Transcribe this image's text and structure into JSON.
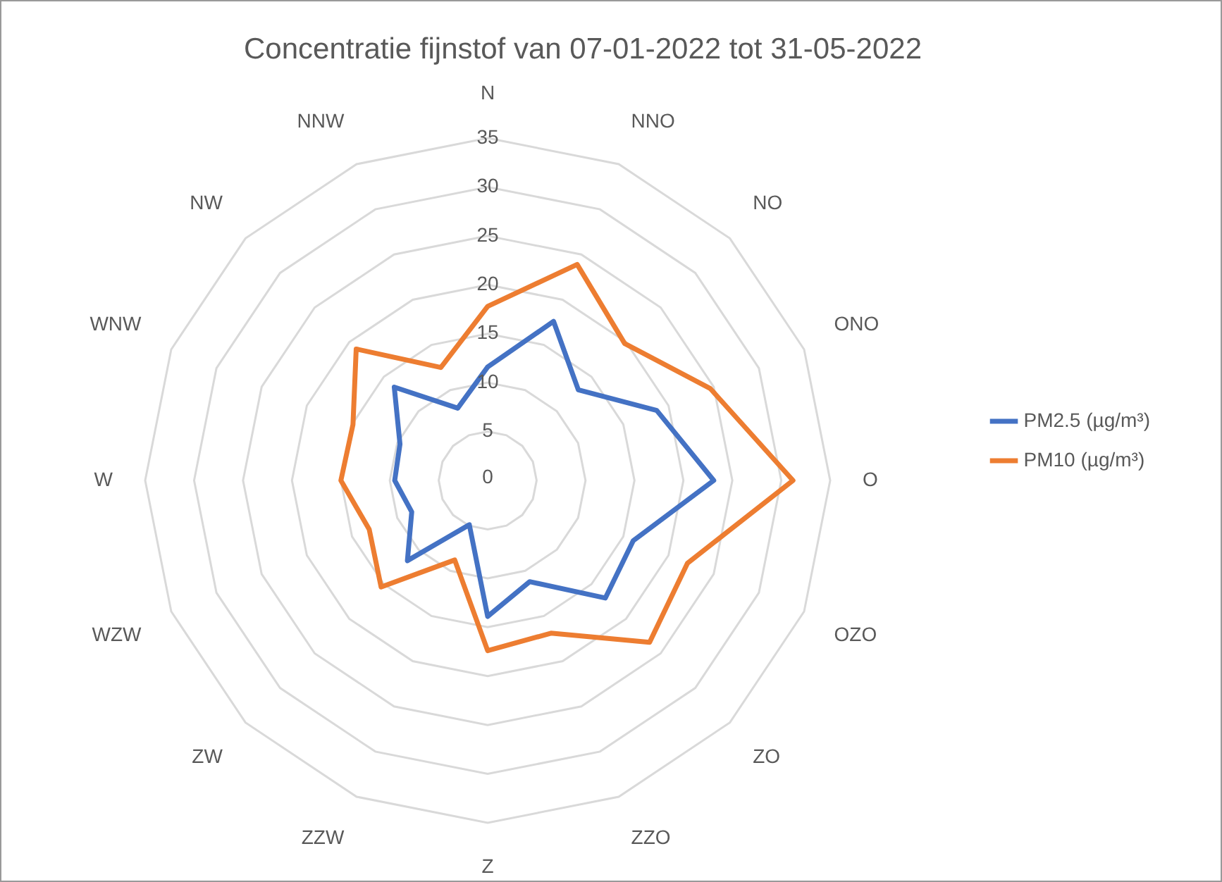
{
  "chart_data": {
    "type": "radar",
    "title": "Concentratie fijnstof van 07-01-2022 tot 31-05-2022",
    "categories": [
      "N",
      "NNO",
      "NO",
      "ONO",
      "O",
      "OZO",
      "ZO",
      "ZZO",
      "Z",
      "ZZW",
      "ZW",
      "WZW",
      "W",
      "WNW",
      "NW",
      "NNW"
    ],
    "series": [
      {
        "name": "PM2.5 (µg/m³)",
        "color": "#4472c4",
        "values": [
          11.6,
          17.6,
          13.1,
          18.7,
          23.1,
          16.1,
          17.0,
          11.2,
          13.9,
          4.9,
          11.6,
          8.4,
          9.5,
          9.7,
          13.5,
          8.0
        ]
      },
      {
        "name": "PM10 (µg/m³)",
        "color": "#ed7d31",
        "values": [
          17.8,
          23.9,
          19.8,
          24.6,
          31.2,
          22.1,
          23.4,
          16.9,
          17.4,
          8.8,
          15.4,
          13.1,
          15.0,
          14.9,
          19.0,
          12.5
        ]
      }
    ],
    "ylim": [
      0,
      35
    ],
    "yticks": [
      0,
      5,
      10,
      15,
      20,
      25,
      30,
      35
    ],
    "grid": true,
    "legend": "right",
    "marker": "none",
    "line_style": "solid"
  }
}
